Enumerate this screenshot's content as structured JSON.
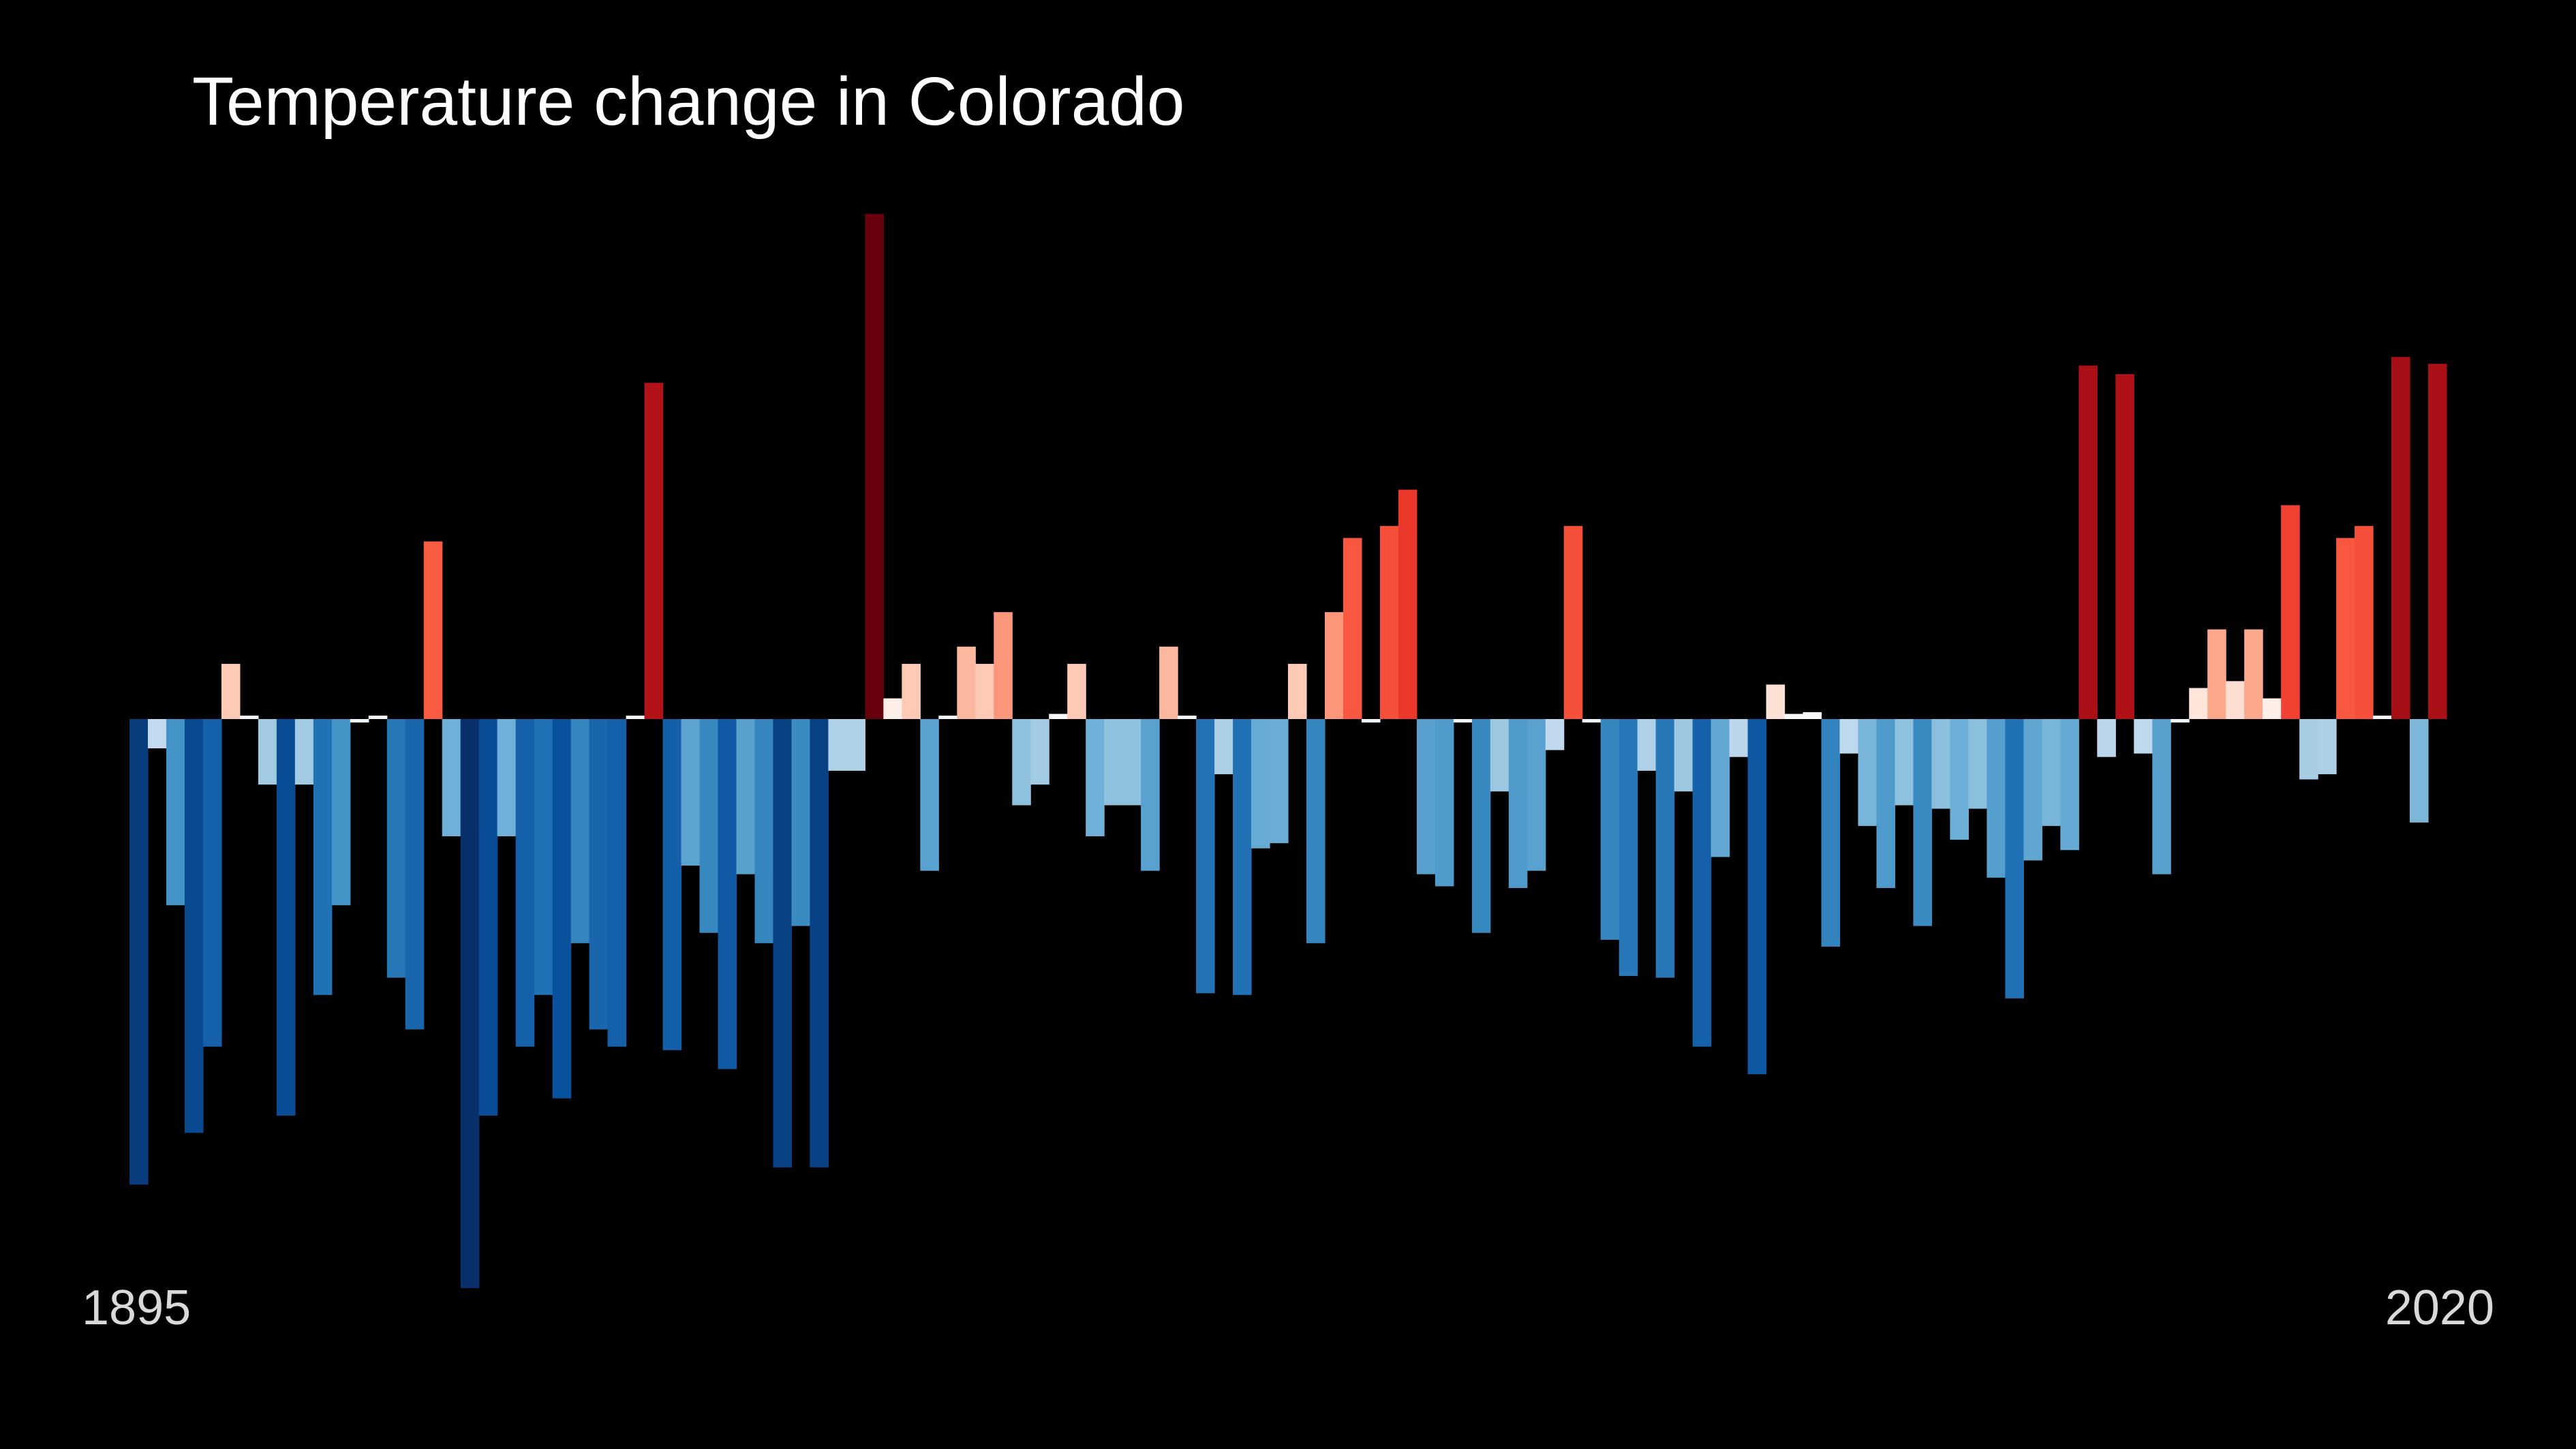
{
  "chart_data": {
    "type": "bar",
    "title": "Temperature change in Colorado",
    "x_start_label": "1895",
    "x_end_label": "2020",
    "x_range": [
      1895,
      2020
    ],
    "ylim": [
      -3.3,
      3.3
    ],
    "grid": false,
    "legend": "none",
    "colors": {
      "background": "#000000",
      "cold_extreme": "#08306b",
      "neutral": "#f7fbff",
      "warm_extreme": "#67000d"
    },
    "values": [
      -2.7,
      -0.17,
      -1.08,
      -2.4,
      -1.9,
      0.32,
      0.02,
      -0.38,
      -2.3,
      -0.38,
      -1.6,
      -1.08,
      -0.02,
      0.02,
      -1.5,
      -1.8,
      1.03,
      -0.68,
      -3.3,
      -2.3,
      -0.68,
      -1.9,
      -1.6,
      -2.2,
      -1.3,
      -1.8,
      -1.9,
      0.02,
      1.95,
      -1.92,
      -0.85,
      -1.24,
      -2.03,
      -0.9,
      -1.3,
      -2.6,
      -1.2,
      -2.6,
      -0.3,
      -0.3,
      2.93,
      0.12,
      0.32,
      -0.88,
      0.02,
      0.42,
      0.32,
      0.62,
      -0.5,
      -0.38,
      0.03,
      0.32,
      -0.68,
      -0.5,
      -0.5,
      -0.88,
      0.42,
      0.02,
      -1.59,
      -0.32,
      -1.6,
      -0.75,
      -0.72,
      0.32,
      -1.3,
      0.62,
      1.05,
      -0.02,
      1.12,
      1.33,
      -0.9,
      -0.97,
      -0.02,
      -1.24,
      -0.42,
      -0.98,
      -0.88,
      -0.18,
      1.12,
      -0.02,
      -1.28,
      -1.49,
      -0.3,
      -1.5,
      -0.42,
      -1.9,
      -0.8,
      -0.22,
      -2.06,
      0.2,
      0.03,
      0.04,
      -1.32,
      -0.2,
      -0.62,
      -0.98,
      -0.5,
      -1.2,
      -0.52,
      -0.7,
      -0.52,
      -0.92,
      -1.62,
      -0.82,
      -0.62,
      -0.76,
      2.05,
      -0.22,
      2.0,
      -0.2,
      -0.9,
      -0.02,
      0.18,
      0.52,
      0.22,
      0.52,
      0.12,
      1.24,
      -0.35,
      -0.32,
      1.05,
      1.12,
      0.02,
      2.1,
      -0.6,
      2.06
    ]
  }
}
